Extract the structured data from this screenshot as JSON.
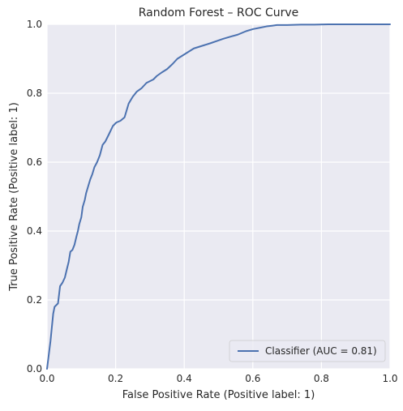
{
  "chart_data": {
    "type": "line",
    "title": "Random Forest – ROC Curve",
    "xlabel": "False Positive Rate (Positive label: 1)",
    "ylabel": "True Positive Rate (Positive label: 1)",
    "xlim": [
      0.0,
      1.0
    ],
    "ylim": [
      0.0,
      1.0
    ],
    "grid": true,
    "legend_position": "bottom-right",
    "x_ticks": [
      "0.0",
      "0.2",
      "0.4",
      "0.6",
      "0.8",
      "1.0"
    ],
    "y_ticks": [
      "0.0",
      "0.2",
      "0.4",
      "0.6",
      "0.8",
      "1.0"
    ],
    "series": [
      {
        "name": "Classifier (AUC = 0.81)",
        "color": "#4c72b0",
        "x": [
          0.0,
          0.01,
          0.018,
          0.022,
          0.032,
          0.038,
          0.045,
          0.052,
          0.058,
          0.063,
          0.068,
          0.074,
          0.08,
          0.086,
          0.09,
          0.094,
          0.1,
          0.104,
          0.11,
          0.114,
          0.12,
          0.126,
          0.132,
          0.138,
          0.146,
          0.154,
          0.162,
          0.17,
          0.18,
          0.192,
          0.202,
          0.214,
          0.226,
          0.238,
          0.25,
          0.262,
          0.276,
          0.29,
          0.3,
          0.31,
          0.32,
          0.334,
          0.35,
          0.366,
          0.38,
          0.396,
          0.412,
          0.428,
          0.444,
          0.46,
          0.476,
          0.496,
          0.514,
          0.534,
          0.556,
          0.58,
          0.6,
          0.62,
          0.64,
          0.656,
          0.67,
          0.7,
          0.74,
          0.78,
          0.82,
          0.86,
          0.9,
          0.94,
          0.97,
          1.0
        ],
        "y": [
          0.0,
          0.08,
          0.16,
          0.18,
          0.19,
          0.24,
          0.25,
          0.265,
          0.29,
          0.31,
          0.34,
          0.345,
          0.36,
          0.385,
          0.4,
          0.42,
          0.44,
          0.47,
          0.49,
          0.51,
          0.53,
          0.55,
          0.565,
          0.585,
          0.6,
          0.62,
          0.65,
          0.66,
          0.68,
          0.705,
          0.715,
          0.72,
          0.73,
          0.77,
          0.79,
          0.805,
          0.815,
          0.83,
          0.835,
          0.84,
          0.85,
          0.86,
          0.87,
          0.885,
          0.9,
          0.91,
          0.92,
          0.93,
          0.935,
          0.94,
          0.945,
          0.952,
          0.958,
          0.964,
          0.97,
          0.98,
          0.986,
          0.99,
          0.994,
          0.996,
          0.998,
          0.998,
          0.999,
          0.999,
          1.0,
          1.0,
          1.0,
          1.0,
          1.0,
          1.0
        ]
      }
    ]
  }
}
